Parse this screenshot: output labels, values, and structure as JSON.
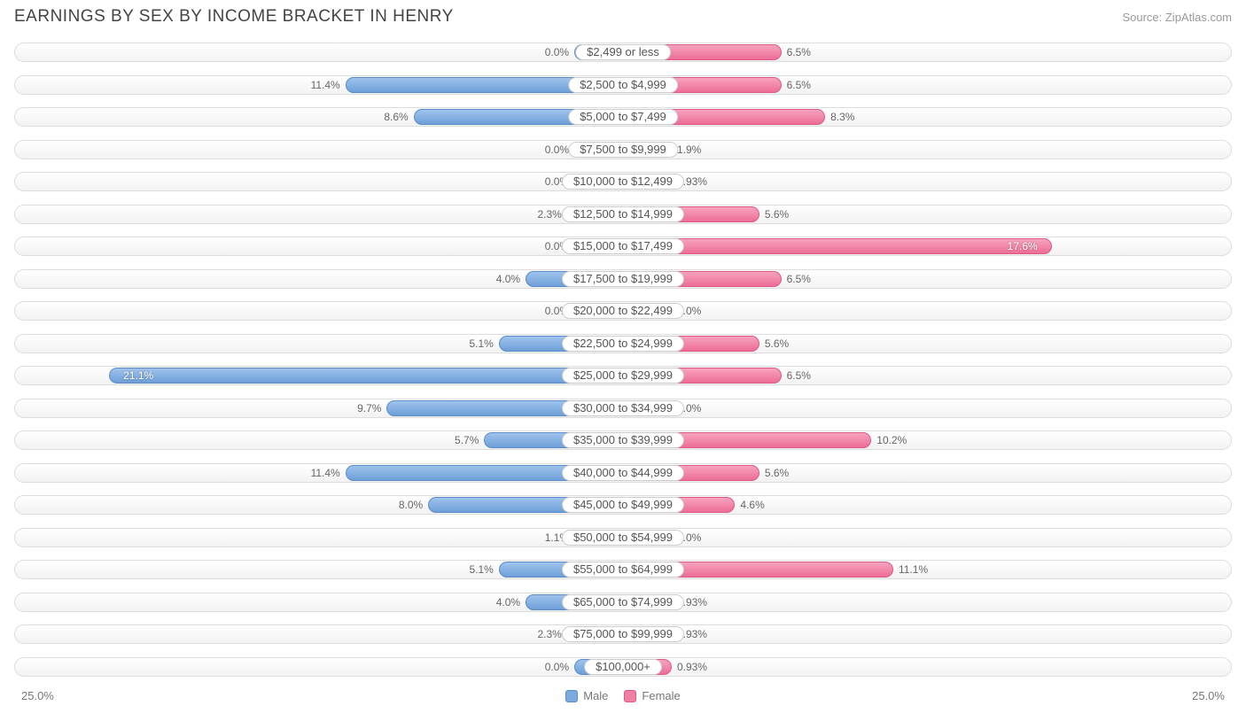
{
  "title": "EARNINGS BY SEX BY INCOME BRACKET IN HENRY",
  "source": "Source: ZipAtlas.com",
  "chart": {
    "type": "diverging-bar",
    "axis_max_pct": 25.0,
    "min_bar_pct": 2.0,
    "axis_label": "25.0%",
    "legend": {
      "male": "Male",
      "female": "Female"
    },
    "colors": {
      "male_fill_top": "#9ec3ed",
      "male_fill_bottom": "#6f9fd8",
      "male_border": "#5a8cc7",
      "female_fill_top": "#f7a3bd",
      "female_fill_bottom": "#ed6d95",
      "female_border": "#db5a84",
      "track_border": "#dddddd",
      "track_bg_top": "#ffffff",
      "track_bg_bottom": "#f2f2f2",
      "text": "#555555",
      "muted_text": "#777777"
    },
    "rows": [
      {
        "label": "$2,499 or less",
        "male": 0.0,
        "male_label": "0.0%",
        "female": 6.5,
        "female_label": "6.5%"
      },
      {
        "label": "$2,500 to $4,999",
        "male": 11.4,
        "male_label": "11.4%",
        "female": 6.5,
        "female_label": "6.5%"
      },
      {
        "label": "$5,000 to $7,499",
        "male": 8.6,
        "male_label": "8.6%",
        "female": 8.3,
        "female_label": "8.3%"
      },
      {
        "label": "$7,500 to $9,999",
        "male": 0.0,
        "male_label": "0.0%",
        "female": 1.9,
        "female_label": "1.9%"
      },
      {
        "label": "$10,000 to $12,499",
        "male": 0.0,
        "male_label": "0.0%",
        "female": 0.93,
        "female_label": "0.93%"
      },
      {
        "label": "$12,500 to $14,999",
        "male": 2.3,
        "male_label": "2.3%",
        "female": 5.6,
        "female_label": "5.6%"
      },
      {
        "label": "$15,000 to $17,499",
        "male": 0.0,
        "male_label": "0.0%",
        "female": 17.6,
        "female_label": "17.6%"
      },
      {
        "label": "$17,500 to $19,999",
        "male": 4.0,
        "male_label": "4.0%",
        "female": 6.5,
        "female_label": "6.5%"
      },
      {
        "label": "$20,000 to $22,499",
        "male": 0.0,
        "male_label": "0.0%",
        "female": 0.0,
        "female_label": "0.0%"
      },
      {
        "label": "$22,500 to $24,999",
        "male": 5.1,
        "male_label": "5.1%",
        "female": 5.6,
        "female_label": "5.6%"
      },
      {
        "label": "$25,000 to $29,999",
        "male": 21.1,
        "male_label": "21.1%",
        "female": 6.5,
        "female_label": "6.5%"
      },
      {
        "label": "$30,000 to $34,999",
        "male": 9.7,
        "male_label": "9.7%",
        "female": 0.0,
        "female_label": "0.0%"
      },
      {
        "label": "$35,000 to $39,999",
        "male": 5.7,
        "male_label": "5.7%",
        "female": 10.2,
        "female_label": "10.2%"
      },
      {
        "label": "$40,000 to $44,999",
        "male": 11.4,
        "male_label": "11.4%",
        "female": 5.6,
        "female_label": "5.6%"
      },
      {
        "label": "$45,000 to $49,999",
        "male": 8.0,
        "male_label": "8.0%",
        "female": 4.6,
        "female_label": "4.6%"
      },
      {
        "label": "$50,000 to $54,999",
        "male": 1.1,
        "male_label": "1.1%",
        "female": 0.0,
        "female_label": "0.0%"
      },
      {
        "label": "$55,000 to $64,999",
        "male": 5.1,
        "male_label": "5.1%",
        "female": 11.1,
        "female_label": "11.1%"
      },
      {
        "label": "$65,000 to $74,999",
        "male": 4.0,
        "male_label": "4.0%",
        "female": 0.93,
        "female_label": "0.93%"
      },
      {
        "label": "$75,000 to $99,999",
        "male": 2.3,
        "male_label": "2.3%",
        "female": 0.93,
        "female_label": "0.93%"
      },
      {
        "label": "$100,000+",
        "male": 0.0,
        "male_label": "0.0%",
        "female": 0.93,
        "female_label": "0.93%"
      }
    ]
  }
}
